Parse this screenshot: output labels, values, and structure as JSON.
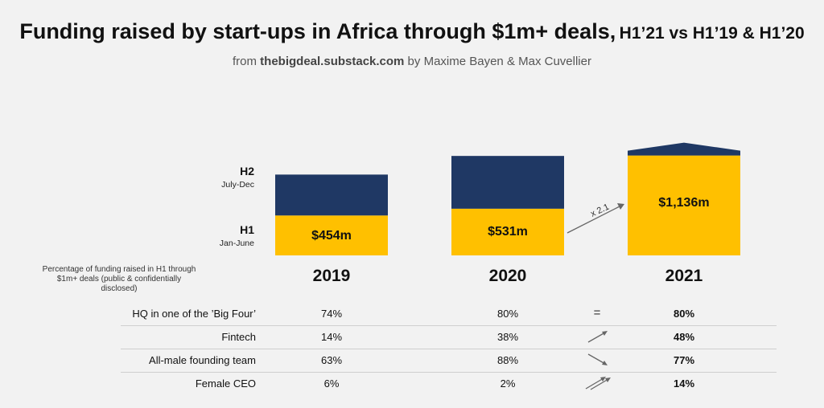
{
  "title": {
    "main": "Funding raised by start-ups in Africa through $1m+ deals,",
    "tail": "H1’21 vs H1’19 & H1’20"
  },
  "subtitle": {
    "prefix": "from ",
    "source": "thebigdeal.substack.com",
    "suffix": " by Maxime Bayen & Max Cuvellier"
  },
  "colors": {
    "h1": "#ffc000",
    "h2": "#1f3864",
    "arrow": "#666666"
  },
  "chart_data": {
    "type": "bar",
    "stacked": true,
    "categories": [
      "2019",
      "2020",
      "2021"
    ],
    "series": [
      {
        "name": "H1",
        "values": [
          454,
          531,
          1136
        ],
        "labels": [
          "$454m",
          "$531m",
          "$1,136m"
        ]
      },
      {
        "name": "H2",
        "values": [
          465,
          600,
          null
        ]
      }
    ],
    "legend": {
      "h2_label": "H2",
      "h2_sub": "July-Dec",
      "h1_label": "H1",
      "h1_sub": "Jan-June"
    },
    "growth_annotation": "x 2.1",
    "ylim": [
      0,
      1200
    ]
  },
  "table": {
    "note": "Percentage of funding raised in H1 through $1m+ deals (public & confidentially disclosed)",
    "rows": [
      {
        "label": "HQ in one of the ’Big Four’",
        "v2019": "74%",
        "v2020": "80%",
        "trend": "equal",
        "trend_symbol": "=",
        "v2021": "80%"
      },
      {
        "label": "Fintech",
        "v2019": "14%",
        "v2020": "38%",
        "trend": "up",
        "trend_symbol": "",
        "v2021": "48%"
      },
      {
        "label": "All-male founding team",
        "v2019": "63%",
        "v2020": "88%",
        "trend": "down",
        "trend_symbol": "",
        "v2021": "77%"
      },
      {
        "label": "Female CEO",
        "v2019": "6%",
        "v2020": "2%",
        "trend": "up-double",
        "trend_symbol": "",
        "v2021": "14%"
      }
    ]
  }
}
